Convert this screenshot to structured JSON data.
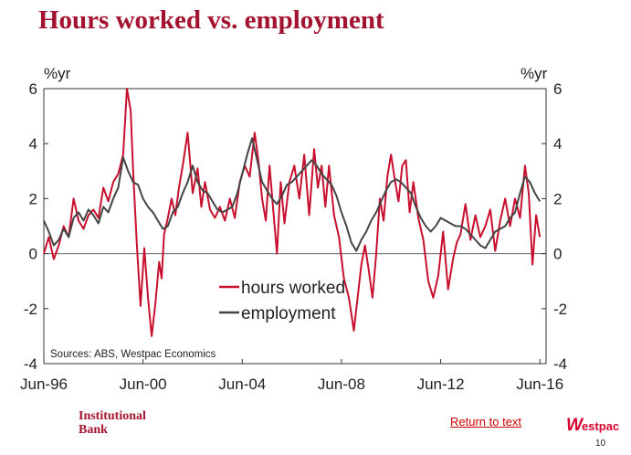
{
  "slide": {
    "title": "Hours worked vs. employment",
    "brand_line1": "Institutional",
    "brand_line2": "Bank",
    "return_link": "Return to text",
    "logo_text": "estpac",
    "page_number": "10",
    "brand_color": "#a3122f"
  },
  "chart_data": {
    "type": "line",
    "title": "Hours worked vs. employment",
    "y_unit_left": "%yr",
    "y_unit_right": "%yr",
    "ylim": [
      -4,
      6
    ],
    "yticks": [
      -4,
      -2,
      0,
      2,
      4,
      6
    ],
    "xlim": [
      1996.5,
      2016.75
    ],
    "x_ticks": [
      {
        "label": "Jun-96",
        "value": 1996.5
      },
      {
        "label": "Jun-00",
        "value": 2000.5
      },
      {
        "label": "Jun-04",
        "value": 2004.5
      },
      {
        "label": "Jun-08",
        "value": 2008.5
      },
      {
        "label": "Jun-12",
        "value": 2012.5
      },
      {
        "label": "Jun-16",
        "value": 2016.5
      }
    ],
    "grid": false,
    "zero_line": true,
    "legend_position": "center",
    "source": "Sources: ABS, Westpac Economics",
    "series": [
      {
        "name": "hours worked",
        "color": "#c8102e",
        "x": [
          1996.5,
          1996.7,
          1996.9,
          1997.1,
          1997.3,
          1997.5,
          1997.7,
          1997.9,
          1998.1,
          1998.3,
          1998.5,
          1998.7,
          1998.9,
          1999.1,
          1999.3,
          1999.5,
          1999.7,
          1999.85,
          2000.0,
          2000.1,
          2000.25,
          2000.4,
          2000.55,
          2000.7,
          2000.85,
          2001.0,
          2001.15,
          2001.25,
          2001.35,
          2001.5,
          2001.65,
          2001.8,
          2001.95,
          2002.1,
          2002.3,
          2002.5,
          2002.7,
          2002.85,
          2003.0,
          2003.2,
          2003.4,
          2003.6,
          2003.8,
          2004.0,
          2004.2,
          2004.4,
          2004.6,
          2004.8,
          2005.0,
          2005.15,
          2005.3,
          2005.45,
          2005.6,
          2005.75,
          2005.9,
          2006.05,
          2006.2,
          2006.4,
          2006.6,
          2006.8,
          2007.0,
          2007.2,
          2007.4,
          2007.55,
          2007.7,
          2007.85,
          2008.0,
          2008.2,
          2008.4,
          2008.6,
          2008.8,
          2009.0,
          2009.15,
          2009.3,
          2009.45,
          2009.6,
          2009.75,
          2009.9,
          2010.05,
          2010.2,
          2010.35,
          2010.5,
          2010.65,
          2010.8,
          2010.95,
          2011.1,
          2011.25,
          2011.4,
          2011.6,
          2011.8,
          2012.0,
          2012.2,
          2012.4,
          2012.6,
          2012.8,
          2013.0,
          2013.15,
          2013.3,
          2013.5,
          2013.7,
          2013.9,
          2014.1,
          2014.3,
          2014.5,
          2014.7,
          2014.9,
          2015.1,
          2015.3,
          2015.5,
          2015.7,
          2015.9,
          2016.05,
          2016.2,
          2016.35,
          2016.5
        ],
        "values": [
          0.0,
          0.6,
          -0.2,
          0.3,
          1.0,
          0.6,
          2.0,
          1.2,
          0.9,
          1.4,
          1.6,
          1.3,
          2.4,
          1.9,
          2.6,
          2.9,
          3.6,
          6.0,
          5.2,
          3.0,
          0.3,
          -1.9,
          0.2,
          -1.6,
          -3.0,
          -1.8,
          -0.3,
          -0.9,
          0.7,
          1.3,
          2.0,
          1.4,
          2.4,
          3.2,
          4.4,
          2.2,
          3.1,
          1.7,
          2.6,
          1.6,
          1.3,
          1.7,
          1.2,
          2.0,
          1.3,
          2.6,
          3.2,
          2.8,
          4.4,
          3.4,
          2.0,
          1.2,
          3.2,
          1.6,
          0.0,
          2.6,
          1.1,
          2.6,
          3.2,
          2.0,
          3.6,
          1.4,
          3.8,
          2.4,
          3.2,
          1.7,
          3.2,
          1.4,
          0.6,
          -0.9,
          -1.6,
          -2.8,
          -1.6,
          -0.4,
          0.3,
          -0.6,
          -1.6,
          0.0,
          2.0,
          1.2,
          2.8,
          3.6,
          2.7,
          1.9,
          3.2,
          3.4,
          1.5,
          2.6,
          1.3,
          0.5,
          -1.0,
          -1.6,
          -0.8,
          0.8,
          -1.3,
          -0.2,
          0.4,
          0.7,
          1.8,
          0.5,
          1.4,
          0.6,
          1.0,
          1.6,
          0.1,
          1.2,
          2.0,
          1.0,
          2.0,
          1.3,
          3.2,
          2.2,
          -0.4,
          1.4,
          0.6
        ]
      },
      {
        "name": "employment",
        "color": "#444444",
        "x": [
          1996.5,
          1996.7,
          1996.9,
          1997.1,
          1997.3,
          1997.5,
          1997.7,
          1997.9,
          1998.1,
          1998.3,
          1998.5,
          1998.7,
          1998.9,
          1999.1,
          1999.3,
          1999.5,
          1999.7,
          1999.9,
          2000.1,
          2000.3,
          2000.5,
          2000.7,
          2000.9,
          2001.1,
          2001.3,
          2001.5,
          2001.7,
          2001.9,
          2002.1,
          2002.3,
          2002.5,
          2002.7,
          2002.9,
          2003.1,
          2003.3,
          2003.5,
          2003.7,
          2003.9,
          2004.1,
          2004.3,
          2004.5,
          2004.7,
          2004.9,
          2005.1,
          2005.3,
          2005.5,
          2005.7,
          2005.9,
          2006.1,
          2006.3,
          2006.5,
          2006.7,
          2006.9,
          2007.1,
          2007.3,
          2007.5,
          2007.7,
          2007.9,
          2008.1,
          2008.3,
          2008.5,
          2008.7,
          2008.9,
          2009.1,
          2009.3,
          2009.5,
          2009.7,
          2009.9,
          2010.1,
          2010.3,
          2010.5,
          2010.7,
          2010.9,
          2011.1,
          2011.3,
          2011.5,
          2011.7,
          2011.9,
          2012.1,
          2012.3,
          2012.5,
          2012.7,
          2012.9,
          2013.1,
          2013.3,
          2013.5,
          2013.7,
          2013.9,
          2014.1,
          2014.3,
          2014.5,
          2014.7,
          2014.9,
          2015.1,
          2015.3,
          2015.5,
          2015.7,
          2015.9,
          2016.1,
          2016.3,
          2016.5
        ],
        "values": [
          1.2,
          0.8,
          0.3,
          0.5,
          0.9,
          0.6,
          1.3,
          1.5,
          1.2,
          1.6,
          1.4,
          1.1,
          1.7,
          1.5,
          2.0,
          2.4,
          3.5,
          3.0,
          2.6,
          2.5,
          2.0,
          1.7,
          1.5,
          1.2,
          0.9,
          1.0,
          1.5,
          1.7,
          2.2,
          2.6,
          3.2,
          2.6,
          2.3,
          2.2,
          1.9,
          1.6,
          1.5,
          1.6,
          1.7,
          2.2,
          2.9,
          3.6,
          4.2,
          3.4,
          2.6,
          2.3,
          2.0,
          1.8,
          2.1,
          2.5,
          2.6,
          2.8,
          3.0,
          3.2,
          3.4,
          3.2,
          2.9,
          2.7,
          2.5,
          2.1,
          1.5,
          1.0,
          0.4,
          0.1,
          0.5,
          0.8,
          1.2,
          1.5,
          1.9,
          2.3,
          2.6,
          2.7,
          2.6,
          2.4,
          2.2,
          1.7,
          1.3,
          1.0,
          0.8,
          1.0,
          1.3,
          1.2,
          1.1,
          1.0,
          1.0,
          0.9,
          0.7,
          0.5,
          0.3,
          0.2,
          0.5,
          0.8,
          0.9,
          1.0,
          1.3,
          1.5,
          2.2,
          2.8,
          2.6,
          2.2,
          1.9
        ]
      }
    ]
  }
}
